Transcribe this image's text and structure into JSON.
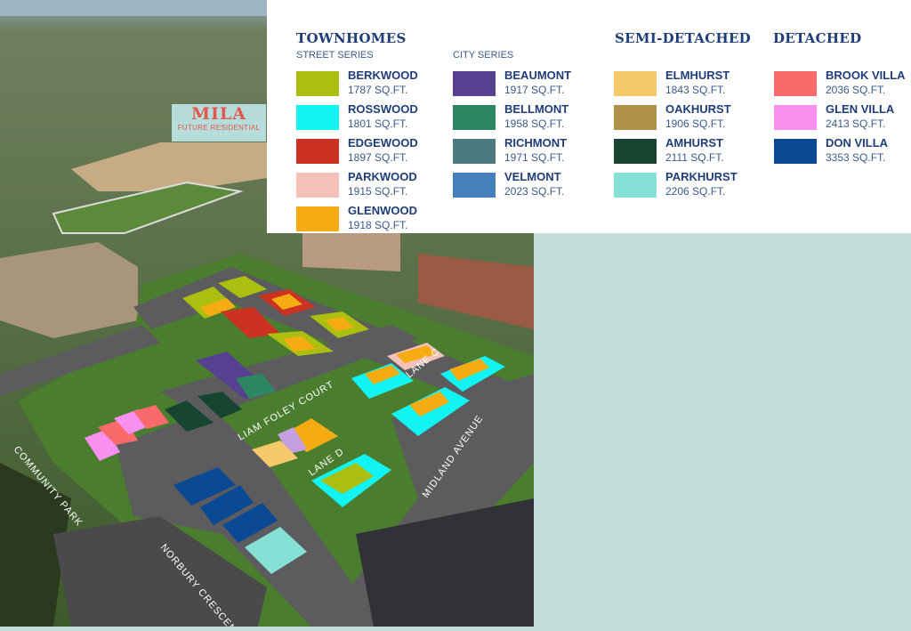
{
  "legend": {
    "townhomes": {
      "heading": "TOWNHOMES",
      "street_series": {
        "label": "STREET SERIES",
        "items": [
          {
            "name": "BERKWOOD",
            "size": "1787 SQ.FT.",
            "color": "#aabf10"
          },
          {
            "name": "ROSSWOOD",
            "size": "1801 SQ.FT.",
            "color": "#12f4f4"
          },
          {
            "name": "EDGEWOOD",
            "size": "1897 SQ.FT.",
            "color": "#cc3221"
          },
          {
            "name": "PARKWOOD",
            "size": "1915 SQ.FT.",
            "color": "#f3c1b8"
          },
          {
            "name": "GLENWOOD",
            "size": "1918 SQ.FT.",
            "color": "#f5ac12"
          }
        ]
      },
      "city_series": {
        "label": "CITY SERIES",
        "items": [
          {
            "name": "BEAUMONT",
            "size": "1917 SQ.FT.",
            "color": "#55418f"
          },
          {
            "name": "BELLMONT",
            "size": "1958 SQ.FT.",
            "color": "#2d8763"
          },
          {
            "name": "RICHMONT",
            "size": "1971 SQ.FT.",
            "color": "#4d7a7f"
          },
          {
            "name": "VELMONT",
            "size": "2023 SQ.FT.",
            "color": "#467fbb"
          }
        ]
      }
    },
    "semi_detached": {
      "heading": "SEMI-DETACHED",
      "items": [
        {
          "name": "ELMHURST",
          "size": "1843 SQ.FT.",
          "color": "#f5c96a"
        },
        {
          "name": "OAKHURST",
          "size": "1906 SQ.FT.",
          "color": "#b0914a"
        },
        {
          "name": "AMHURST",
          "size": "2111 SQ.FT.",
          "color": "#174532"
        },
        {
          "name": "PARKHURST",
          "size": "2206 SQ.FT.",
          "color": "#85e0d6"
        }
      ]
    },
    "detached": {
      "heading": "DETACHED",
      "items": [
        {
          "name": "BROOK VILLA",
          "size": "2036 SQ.FT.",
          "color": "#fa6a6d"
        },
        {
          "name": "GLEN VILLA",
          "size": "2413 SQ.FT.",
          "color": "#f890f0"
        },
        {
          "name": "DON VILLA",
          "size": "3353 SQ.FT.",
          "color": "#0a4a94"
        }
      ]
    }
  },
  "map": {
    "mila_sign": {
      "title": "MILA",
      "subtitle": "FUTURE RESIDENTIAL"
    },
    "streets": {
      "community_park": "COMMUNITY PARK",
      "norbury_crescent": "NORBURY CRESCENT",
      "midland_avenue": "MIDLAND AVENUE",
      "liam_foley_court": "LIAM FOLEY COURT",
      "lane_c": "LANE C",
      "lane_d": "LANE D"
    }
  }
}
